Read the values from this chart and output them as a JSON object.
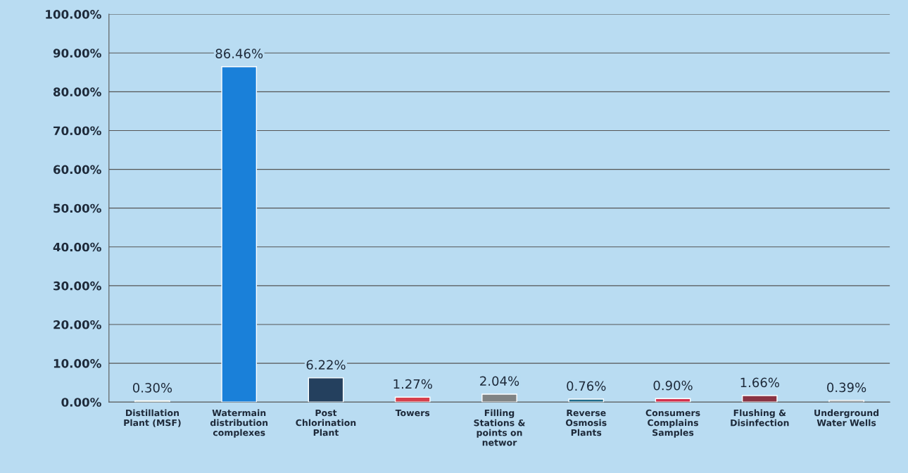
{
  "chart_data": {
    "type": "bar",
    "categories": [
      "Distillation Plant (MSF)",
      "Watermain distribution complexes",
      "Post Chlorination Plant",
      "Towers",
      "Filling Stations & points on networ",
      "Reverse Osmosis Plants",
      "Consumers Complains Samples",
      "Flushing & Disinfection",
      "Underground Water Wells"
    ],
    "values": [
      0.3,
      86.46,
      6.22,
      1.27,
      2.04,
      0.76,
      0.9,
      1.66,
      0.39
    ],
    "value_labels": [
      "0.30%",
      "86.46%",
      "6.22%",
      "1.27%",
      "2.04%",
      "0.76%",
      "0.90%",
      "1.66%",
      "0.39%"
    ],
    "colors": [
      "#5b7f6a",
      "#1a80d9",
      "#24405e",
      "#d6404c",
      "#808384",
      "#1f6c8c",
      "#d4304c",
      "#8a3343",
      "#3f4a52"
    ],
    "ylim": [
      0,
      100
    ],
    "yticks": [
      {
        "value": 0,
        "label": "0.00%"
      },
      {
        "value": 10,
        "label": "10.00%"
      },
      {
        "value": 20,
        "label": "20.00%"
      },
      {
        "value": 30,
        "label": "30.00%"
      },
      {
        "value": 40,
        "label": "40.00%"
      },
      {
        "value": 50,
        "label": "50.00%"
      },
      {
        "value": 60,
        "label": "60.00%"
      },
      {
        "value": 70,
        "label": "70.00%"
      },
      {
        "value": 80,
        "label": "80.00%"
      },
      {
        "value": 90,
        "label": "90.00%"
      },
      {
        "value": 100,
        "label": "100.00%"
      }
    ],
    "grid": "y"
  }
}
